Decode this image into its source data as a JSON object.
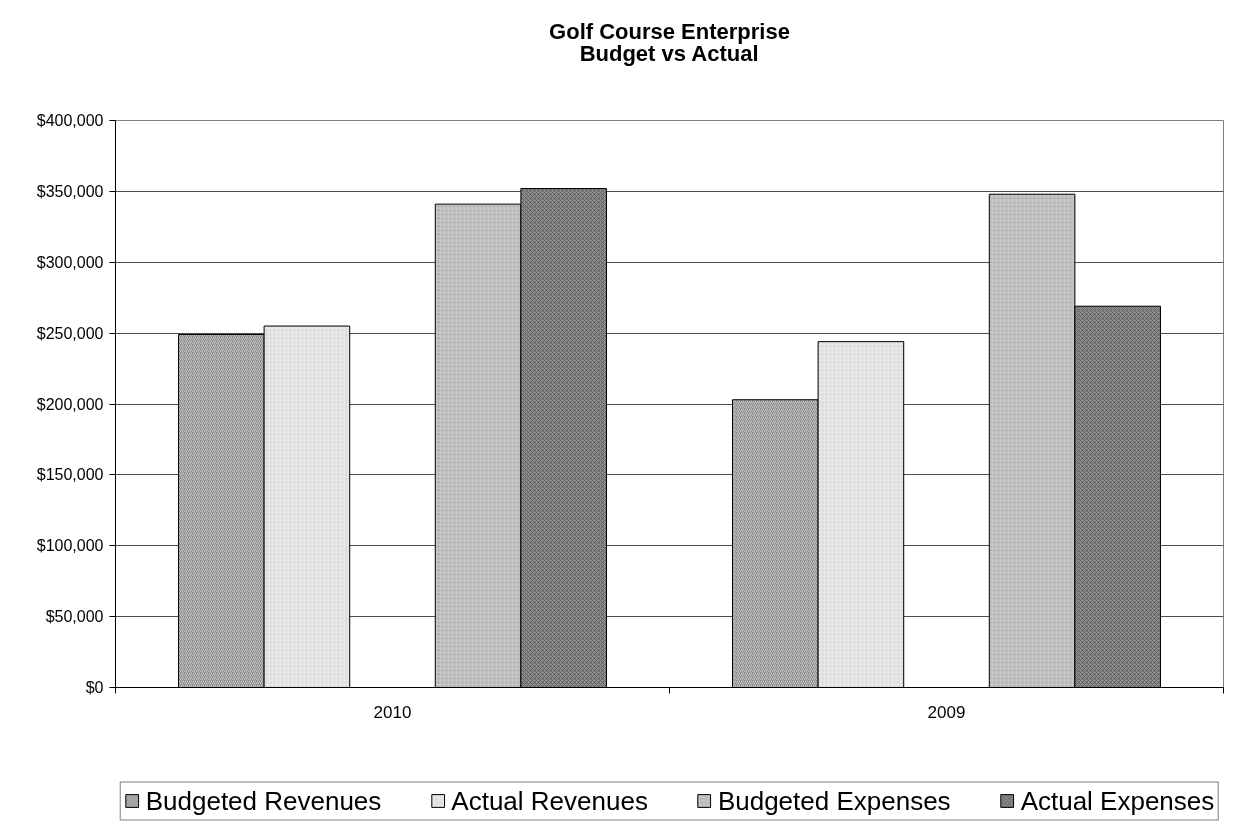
{
  "chart_data": {
    "type": "bar",
    "title": "Golf Course Enterprise",
    "subtitle": "Budget vs Actual",
    "categories": [
      "2010",
      "2009"
    ],
    "series": [
      {
        "name": "Budgeted Revenues",
        "color": "#8a8a8a",
        "values": [
          249000,
          203000
        ]
      },
      {
        "name": "Actual Revenues",
        "color": "#e6e6e6",
        "values": [
          255000,
          244000
        ]
      },
      {
        "name": "Budgeted Expenses",
        "color": "#c4c4c4",
        "values": [
          341000,
          348000
        ]
      },
      {
        "name": "Actual Expenses",
        "color": "#8c8c8c",
        "values": [
          352000,
          269000
        ]
      }
    ],
    "ylim": [
      0,
      400000
    ],
    "yticks": [
      {
        "value": 0,
        "label": "$0"
      },
      {
        "value": 50000,
        "label": "$50,000"
      },
      {
        "value": 100000,
        "label": "$100,000"
      },
      {
        "value": 150000,
        "label": "$150,000"
      },
      {
        "value": 200000,
        "label": "$200,000"
      },
      {
        "value": 250000,
        "label": "$250,000"
      },
      {
        "value": 300000,
        "label": "$300,000"
      },
      {
        "value": 350000,
        "label": "$350,000"
      },
      {
        "value": 400000,
        "label": "$400,000"
      }
    ],
    "grid": "y",
    "legend": "bottom"
  }
}
